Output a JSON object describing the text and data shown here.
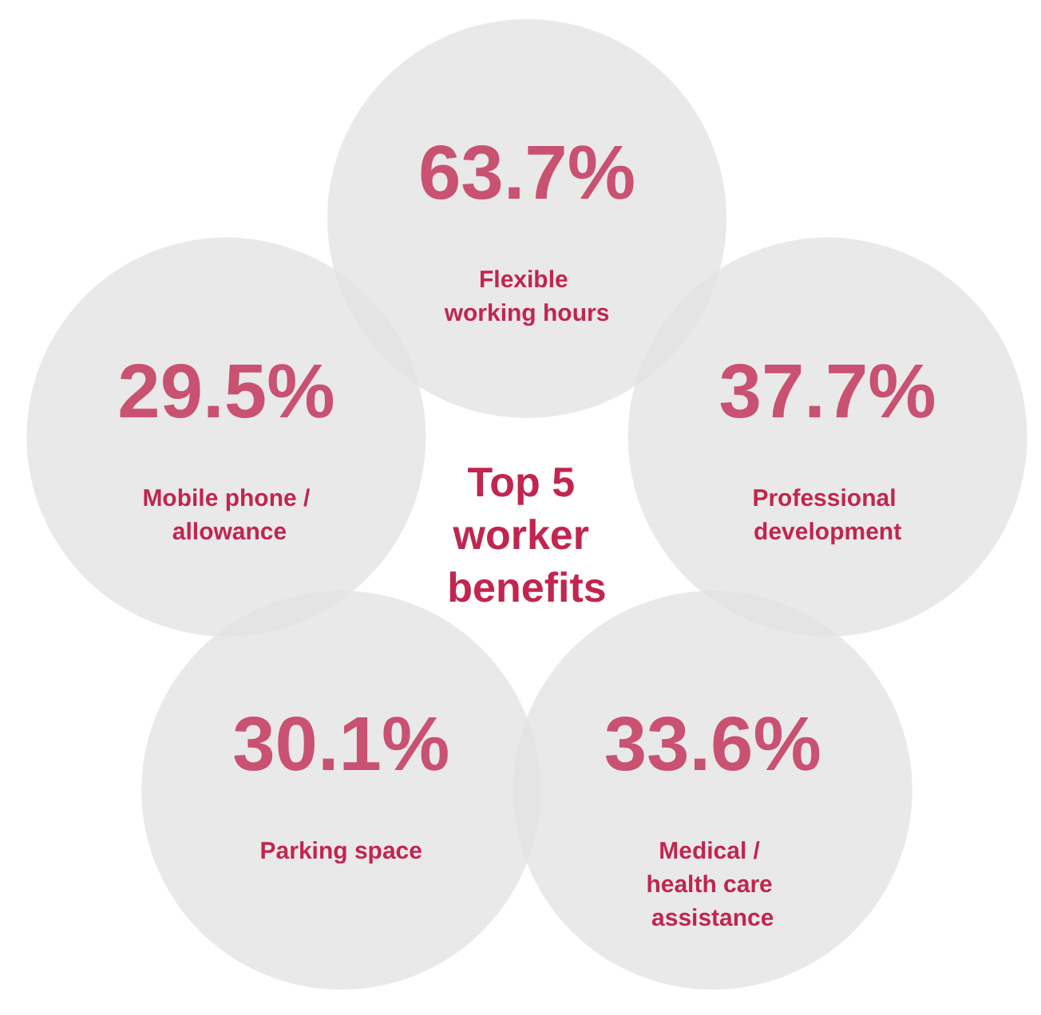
{
  "chart_data": {
    "type": "other",
    "title": "Top 5 worker benefits",
    "categories": [
      "Flexible working hours",
      "Professional development",
      "Medical / health care assistance",
      "Parking space",
      "Mobile phone / allowance"
    ],
    "values": [
      63.7,
      37.7,
      33.6,
      30.1,
      29.5
    ],
    "value_labels": [
      "63.7%",
      "37.7%",
      "33.6%",
      "30.1%",
      "29.5%"
    ],
    "color": "#e3e3e3"
  }
}
